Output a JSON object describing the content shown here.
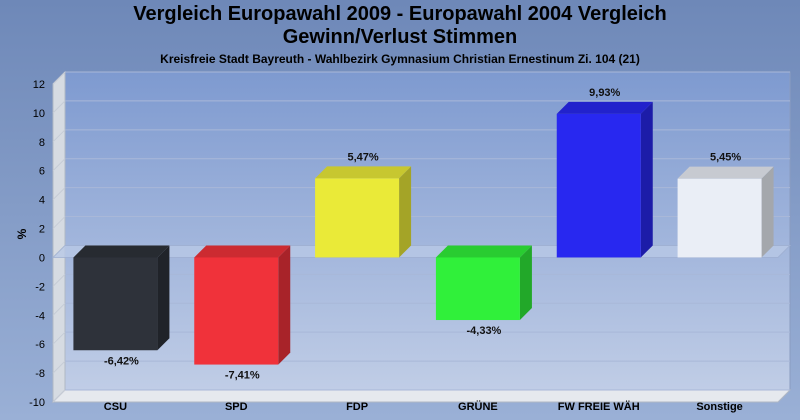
{
  "chart_data": {
    "type": "bar",
    "title_lines": [
      "Vergleich Europawahl 2009 - Europawahl 2004 Vergleich",
      "Gewinn/Verlust Stimmen"
    ],
    "subtitle": "Kreisfreie Stadt Bayreuth - Wahlbezirk Gymnasium Christian Ernestinum Zi. 104 (21)",
    "xlabel": "",
    "ylabel": "%",
    "ylim": [
      -10,
      12
    ],
    "yticks": [
      12,
      10,
      8,
      6,
      4,
      2,
      0,
      -2,
      -4,
      -6,
      -8,
      -10
    ],
    "grid": true,
    "categories": [
      "CSU",
      "SPD",
      "FDP",
      "GRÜNE",
      "FW FREIE WÄH",
      "Sonstige"
    ],
    "values": [
      -6.42,
      -7.41,
      5.47,
      -4.33,
      9.93,
      5.45
    ],
    "data_labels": [
      "-6,42%",
      "-7,41%",
      "5,47%",
      "-4,33%",
      "9,93%",
      "5,45%"
    ],
    "colors": [
      "#2e323a",
      "#f0323a",
      "#eaea38",
      "#30f03a",
      "#2828f0",
      "#eaeef6"
    ]
  }
}
